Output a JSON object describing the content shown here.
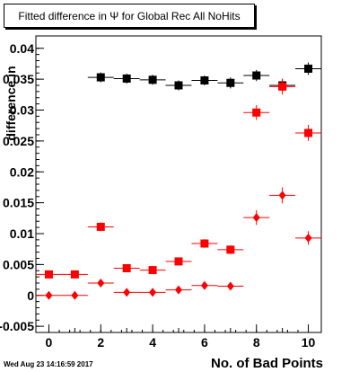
{
  "title": "Fitted difference in  Ψ  for Global Rec All NoHits",
  "timestamp": "Wed Aug 23 14:16:59 2017",
  "chart_data": {
    "type": "scatter",
    "xlabel": "No. of Bad Points",
    "ylabel": "difference in",
    "xlim": [
      -0.5,
      10.5
    ],
    "ylim": [
      -0.006,
      0.042
    ],
    "x_ticks": [
      "0",
      "2",
      "4",
      "6",
      "8",
      "10"
    ],
    "y_ticks": [
      "-0.005",
      "0",
      "0.005",
      "0.01",
      "0.015",
      "0.02",
      "0.025",
      "0.03",
      "0.035",
      "0.04"
    ],
    "grid": false,
    "series": [
      {
        "marker": "square",
        "color": "#000000",
        "points": [
          {
            "x": 2,
            "y": 0.0353,
            "err": 0.0008
          },
          {
            "x": 3,
            "y": 0.0351,
            "err": 0.0008
          },
          {
            "x": 4,
            "y": 0.0349,
            "err": 0.0008
          },
          {
            "x": 5,
            "y": 0.034,
            "err": 0.0008
          },
          {
            "x": 6,
            "y": 0.0348,
            "err": 0.0008
          },
          {
            "x": 7,
            "y": 0.0344,
            "err": 0.0009
          },
          {
            "x": 8,
            "y": 0.0356,
            "err": 0.0009
          },
          {
            "x": 9,
            "y": 0.034,
            "err": 0.001
          },
          {
            "x": 10,
            "y": 0.0367,
            "err": 0.001
          }
        ]
      },
      {
        "marker": "square",
        "color": "#ff0000",
        "points": [
          {
            "x": 0,
            "y": 0.0034,
            "err": 0.0006
          },
          {
            "x": 1,
            "y": 0.0034,
            "err": 0.0006
          },
          {
            "x": 2,
            "y": 0.0111,
            "err": 0.0007
          },
          {
            "x": 3,
            "y": 0.0044,
            "err": 0.0006
          },
          {
            "x": 4,
            "y": 0.0041,
            "err": 0.0006
          },
          {
            "x": 5,
            "y": 0.0055,
            "err": 0.0006
          },
          {
            "x": 6,
            "y": 0.0084,
            "err": 0.0007
          },
          {
            "x": 7,
            "y": 0.0074,
            "err": 0.0007
          },
          {
            "x": 8,
            "y": 0.0296,
            "err": 0.0012
          },
          {
            "x": 9,
            "y": 0.0338,
            "err": 0.0013
          },
          {
            "x": 10,
            "y": 0.0263,
            "err": 0.0013
          }
        ]
      },
      {
        "marker": "diamond",
        "color": "#ff0000",
        "points": [
          {
            "x": 0,
            "y": 0.0,
            "err": 0.0003
          },
          {
            "x": 1,
            "y": 0.0,
            "err": 0.0003
          },
          {
            "x": 2,
            "y": 0.002,
            "err": 0.0006
          },
          {
            "x": 3,
            "y": 0.0005,
            "err": 0.0004
          },
          {
            "x": 4,
            "y": 0.0005,
            "err": 0.0004
          },
          {
            "x": 5,
            "y": 0.0009,
            "err": 0.0004
          },
          {
            "x": 6,
            "y": 0.0016,
            "err": 0.0005
          },
          {
            "x": 7,
            "y": 0.0015,
            "err": 0.0004
          },
          {
            "x": 8,
            "y": 0.0126,
            "err": 0.0012
          },
          {
            "x": 9,
            "y": 0.0162,
            "err": 0.0013
          },
          {
            "x": 10,
            "y": 0.0093,
            "err": 0.0011
          }
        ]
      }
    ]
  }
}
